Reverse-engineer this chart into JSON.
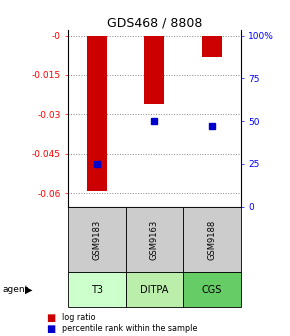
{
  "title": "GDS468 / 8808",
  "samples": [
    "GSM9183",
    "GSM9163",
    "GSM9188"
  ],
  "agents": [
    "T3",
    "DITPA",
    "CGS"
  ],
  "log_ratios": [
    -0.059,
    -0.026,
    -0.008
  ],
  "percentile_ranks": [
    25,
    50,
    47
  ],
  "ylim_left": [
    -0.065,
    0.002
  ],
  "left_ticks": [
    0.0,
    -0.015,
    -0.03,
    -0.045,
    -0.06
  ],
  "left_tick_labels": [
    "-0",
    "-0.015",
    "-0.03",
    "-0.045",
    "-0.06"
  ],
  "right_tick_labels": [
    "100%",
    "75",
    "50",
    "25",
    "0"
  ],
  "bar_color": "#cc0000",
  "dot_color": "#0000cc",
  "grid_color": "#888888",
  "sample_box_color": "#cccccc",
  "agent_colors": [
    "#ccffcc",
    "#bbeeaa",
    "#66cc66"
  ],
  "bar_width": 0.35,
  "dot_size": 4
}
